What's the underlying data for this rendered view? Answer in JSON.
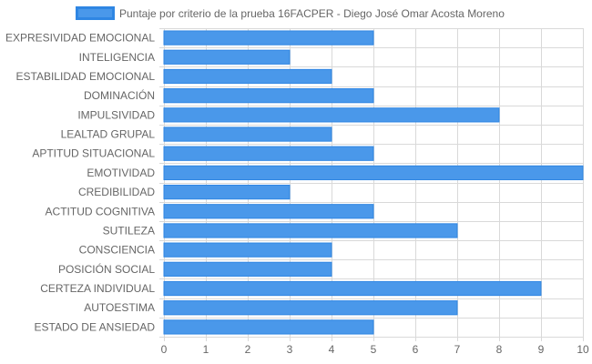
{
  "chart_data": {
    "type": "bar",
    "orientation": "horizontal",
    "categories": [
      "EXPRESIVIDAD EMOCIONAL",
      "INTELIGENCIA",
      "ESTABILIDAD EMOCIONAL",
      "DOMINACIÓN",
      "IMPULSIVIDAD",
      "LEALTAD GRUPAL",
      "APTITUD SITUACIONAL",
      "EMOTIVIDAD",
      "CREDIBILIDAD",
      "ACTITUD COGNITIVA",
      "SUTILEZA",
      "CONSCIENCIA",
      "POSICIÓN SOCIAL",
      "CERTEZA INDIVIDUAL",
      "AUTOESTIMA",
      "ESTADO DE ANSIEDAD"
    ],
    "series": [
      {
        "name": "Puntaje por criterio de la prueba 16FACPER - Diego José Omar Acosta Moreno",
        "values": [
          5,
          3,
          4,
          5,
          8,
          4,
          5,
          10,
          3,
          5,
          7,
          4,
          4,
          9,
          7,
          5
        ]
      }
    ],
    "xlim": [
      0,
      10
    ],
    "xticks": [
      "0",
      "1",
      "2",
      "3",
      "4",
      "5",
      "6",
      "7",
      "8",
      "9",
      "10"
    ],
    "grid": true,
    "legend_position": "top",
    "colors": {
      "bar_fill": "#4a98ea",
      "bar_border": "#2f86e3",
      "grid": "#d9d9d9",
      "text": "#666666"
    }
  }
}
